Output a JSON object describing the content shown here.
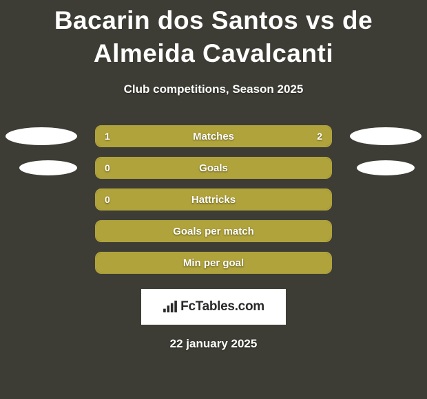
{
  "background_color": "#3d3d35",
  "title": "Bacarin dos Santos vs de Almeida Cavalcanti",
  "title_color": "#ffffff",
  "title_fontsize": 37,
  "subtitle": "Club competitions, Season 2025",
  "subtitle_color": "#ffffff",
  "subtitle_fontsize": 17,
  "bar_color": "#b0a33b",
  "bar_border_color": "#b0a33b",
  "ellipse_color": "#ffffff",
  "rows": [
    {
      "label": "Matches",
      "left_value": "1",
      "right_value": "2",
      "left_fill_pct": 33,
      "right_fill_pct": 67,
      "show_left_ellipse": true,
      "show_right_ellipse": true,
      "ellipse_size": "large"
    },
    {
      "label": "Goals",
      "left_value": "0",
      "right_value": "",
      "left_fill_pct": 100,
      "right_fill_pct": 0,
      "show_left_ellipse": true,
      "show_right_ellipse": true,
      "ellipse_size": "small"
    },
    {
      "label": "Hattricks",
      "left_value": "0",
      "right_value": "",
      "left_fill_pct": 100,
      "right_fill_pct": 0,
      "show_left_ellipse": false,
      "show_right_ellipse": false
    },
    {
      "label": "Goals per match",
      "left_value": "",
      "right_value": "",
      "left_fill_pct": 100,
      "right_fill_pct": 0,
      "show_left_ellipse": false,
      "show_right_ellipse": false
    },
    {
      "label": "Min per goal",
      "left_value": "",
      "right_value": "",
      "left_fill_pct": 100,
      "right_fill_pct": 0,
      "show_left_ellipse": false,
      "show_right_ellipse": false
    }
  ],
  "logo_text": "FcTables.com",
  "logo_bg": "#ffffff",
  "logo_text_color": "#2a2a2a",
  "date": "22 january 2025",
  "date_color": "#ffffff"
}
